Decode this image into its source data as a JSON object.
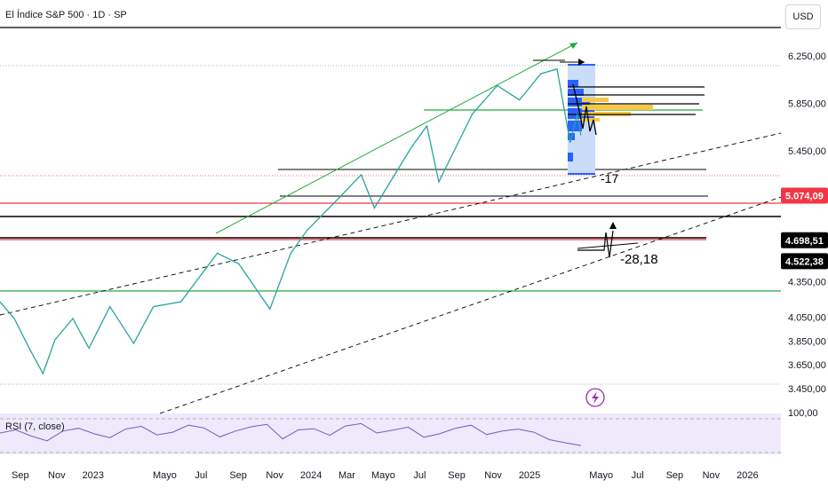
{
  "header": {
    "title": "El Índice S&P 500 · 1D · SP",
    "currency": "USD"
  },
  "chart_data": {
    "type": "line",
    "title": "El Índice S&P 500 · 1D · SP",
    "price_axis": {
      "ticks": [
        "6.250,00",
        "5.850,00",
        "5.450,00",
        "4.350,00",
        "4.050,00",
        "3.850,00",
        "3.650,00",
        "3.450,00"
      ],
      "tick_values": [
        6250,
        5850,
        5450,
        4350,
        4050,
        3850,
        3650,
        3450
      ],
      "ylim": [
        3350,
        6420
      ]
    },
    "price_labels": [
      {
        "text": "5.074,09",
        "value": 5074.09,
        "color": "#f23645"
      },
      {
        "text": "4.698,51",
        "value": 4698.51,
        "color": "#000000"
      },
      {
        "text": "4.522,38",
        "value": 4522.38,
        "color": "#000000"
      }
    ],
    "x_axis": {
      "labels": [
        "Sep",
        "Nov",
        "2023",
        "Mayo",
        "Jul",
        "Sep",
        "Nov",
        "2024",
        "Mar",
        "Mayo",
        "Jul",
        "Sep",
        "Nov",
        "2025",
        "Mayo",
        "Jul",
        "Sep",
        "Nov",
        "2026"
      ],
      "dates": [
        "2022-09",
        "2022-11",
        "2023-01",
        "2023-05",
        "2023-07",
        "2023-09",
        "2023-11",
        "2024-01",
        "2024-03",
        "2024-05",
        "2024-07",
        "2024-09",
        "2024-11",
        "2025-01",
        "2025-05",
        "2025-07",
        "2025-09",
        "2025-11",
        "2026-01"
      ]
    },
    "series": [
      {
        "name": "",
        "points": [
          [
            "2022-08-01",
            4180
          ],
          [
            "2022-08-25",
            4040
          ],
          [
            "2022-09-20",
            3780
          ],
          [
            "2022-10-12",
            3577
          ],
          [
            "2022-11-01",
            3860
          ],
          [
            "2022-12-01",
            4040
          ],
          [
            "2022-12-28",
            3790
          ],
          [
            "2023-02-01",
            4140
          ],
          [
            "2023-03-13",
            3830
          ],
          [
            "2023-04-15",
            4140
          ],
          [
            "2023-05-31",
            4180
          ],
          [
            "2023-07-31",
            4590
          ],
          [
            "2023-09-05",
            4500
          ],
          [
            "2023-10-27",
            4120
          ],
          [
            "2023-12-01",
            4590
          ],
          [
            "2023-12-28",
            4780
          ],
          [
            "2024-02-15",
            5030
          ],
          [
            "2024-03-28",
            5250
          ],
          [
            "2024-04-19",
            4970
          ],
          [
            "2024-06-20",
            5480
          ],
          [
            "2024-07-16",
            5660
          ],
          [
            "2024-08-05",
            5190
          ],
          [
            "2024-09-30",
            5760
          ],
          [
            "2024-11-11",
            6000
          ],
          [
            "2024-12-18",
            5880
          ],
          [
            "2025-01-23",
            6100
          ],
          [
            "2025-02-19",
            6140
          ],
          [
            "2025-03-13",
            5520
          ],
          [
            "2025-03-25",
            5760
          ],
          [
            "2025-03-31",
            5580
          ]
        ]
      }
    ],
    "annotations": [
      "-17",
      "-28,18"
    ],
    "rsi": {
      "label": "RSI (7, close)",
      "tick": "100,00",
      "points": [
        50,
        58,
        42,
        30,
        55,
        62,
        48,
        38,
        60,
        67,
        45,
        52,
        70,
        63,
        40,
        55,
        66,
        72,
        35,
        58,
        61,
        44,
        68,
        74,
        50,
        57,
        65,
        39,
        48,
        62,
        70,
        46,
        55,
        60,
        52,
        33,
        25,
        18
      ]
    },
    "grid": false
  }
}
